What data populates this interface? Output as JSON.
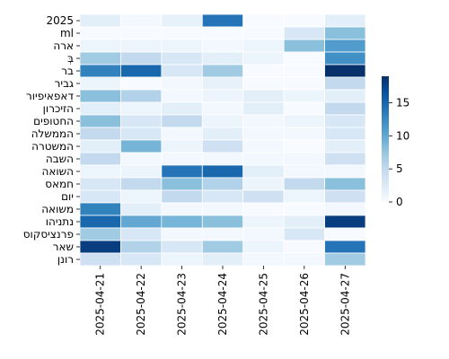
{
  "chart_data": {
    "type": "heatmap",
    "x_labels": [
      "2025-04-21",
      "2025-04-22",
      "2025-04-23",
      "2025-04-24",
      "2025-04-25",
      "2025-04-26",
      "2025-04-27"
    ],
    "y_labels": [
      "2025",
      "ml",
      "ארה",
      "בְּ",
      "בר",
      "גביר",
      "דאפאיפיור",
      "הזיכרון",
      "החטופים",
      "הממשלה",
      "המשטרה",
      "השבה",
      "השואה",
      "חמאס",
      "יום",
      "משואה",
      "נתניהו",
      "פרנציסקוס",
      "שאר",
      "רונן"
    ],
    "values": [
      [
        2,
        0.5,
        1.5,
        14,
        0,
        0,
        2
      ],
      [
        0,
        0,
        0,
        0,
        0,
        3,
        8
      ],
      [
        1,
        1,
        1,
        0.5,
        1,
        8,
        11
      ],
      [
        7,
        5,
        3,
        2,
        1,
        0,
        12
      ],
      [
        13,
        15,
        3,
        7,
        0,
        0,
        19
      ],
      [
        1,
        0,
        0.5,
        1.5,
        0,
        0,
        5
      ],
      [
        8,
        6,
        0.5,
        1,
        2,
        1,
        2
      ],
      [
        2,
        1,
        2,
        0.5,
        2,
        0,
        5
      ],
      [
        8,
        3,
        5,
        1,
        0.5,
        1,
        3
      ],
      [
        5,
        3,
        0.5,
        2,
        0.5,
        0.5,
        3
      ],
      [
        2,
        9,
        1,
        4,
        0.5,
        0,
        2
      ],
      [
        5,
        0.5,
        0.5,
        0.5,
        0.5,
        0.5,
        4
      ],
      [
        1,
        1,
        14,
        15,
        2,
        0.5,
        0.5
      ],
      [
        3,
        5,
        8,
        6,
        1,
        5,
        8
      ],
      [
        3,
        1,
        5,
        3,
        4,
        1,
        4
      ],
      [
        13,
        2,
        0.5,
        0.5,
        0,
        0,
        0.5
      ],
      [
        15,
        10,
        9,
        8,
        1,
        2,
        18
      ],
      [
        7,
        3,
        0.5,
        0.5,
        0.5,
        3,
        0
      ],
      [
        18,
        6,
        3,
        7,
        1,
        0,
        14
      ],
      [
        4,
        3,
        1,
        2,
        0.5,
        0.5,
        7
      ]
    ],
    "colorbar": {
      "min": 0,
      "max": 19,
      "ticks": [
        0,
        5,
        10,
        15
      ]
    },
    "colormap": "Blues",
    "grid": true
  }
}
